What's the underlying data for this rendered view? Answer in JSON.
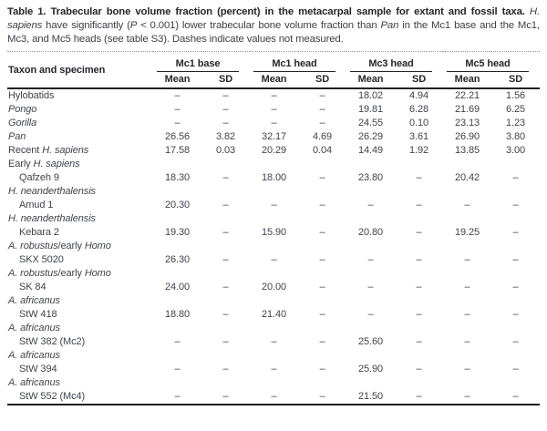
{
  "caption": {
    "segments": [
      {
        "text": "Table 1. Trabecular bone volume fraction (percent) in the metacarpal sample for extant and fossil taxa.",
        "bold": true
      },
      {
        "text": " "
      },
      {
        "text": "H. sapiens",
        "italic": true
      },
      {
        "text": " have significantly ("
      },
      {
        "text": "P",
        "italic": true
      },
      {
        "text": " < 0.001) lower trabecular bone volume fraction than "
      },
      {
        "text": "Pan",
        "italic": true
      },
      {
        "text": " in the Mc1 base and the Mc1, Mc3, and Mc5 heads (see table S3). Dashes indicate values not measured."
      }
    ]
  },
  "table": {
    "row_header": "Taxon and specimen",
    "col_groups": [
      "Mc1 base",
      "Mc1 head",
      "Mc3 head",
      "Mc5 head"
    ],
    "sub_headers": [
      "Mean",
      "SD"
    ],
    "not_measured_symbol": "–",
    "rows": [
      {
        "taxon": [
          {
            "text": "Hylobatids"
          }
        ],
        "indent": false,
        "values": [
          "–",
          "–",
          "–",
          "–",
          "18.02",
          "4.94",
          "22.21",
          "1.56"
        ]
      },
      {
        "taxon": [
          {
            "text": "Pongo",
            "italic": true
          }
        ],
        "indent": false,
        "values": [
          "–",
          "–",
          "–",
          "–",
          "19.81",
          "6.28",
          "21.69",
          "6.25"
        ]
      },
      {
        "taxon": [
          {
            "text": "Gorilla",
            "italic": true
          }
        ],
        "indent": false,
        "values": [
          "–",
          "–",
          "–",
          "–",
          "24.55",
          "0.10",
          "23.13",
          "1.23"
        ]
      },
      {
        "taxon": [
          {
            "text": "Pan",
            "italic": true
          }
        ],
        "indent": false,
        "values": [
          "26.56",
          "3.82",
          "32.17",
          "4.69",
          "26.29",
          "3.61",
          "26.90",
          "3.80"
        ]
      },
      {
        "taxon": [
          {
            "text": "Recent "
          },
          {
            "text": "H. sapiens",
            "italic": true
          }
        ],
        "indent": false,
        "values": [
          "17.58",
          "0.03",
          "20.29",
          "0.04",
          "14.49",
          "1.92",
          "13.85",
          "3.00"
        ]
      },
      {
        "taxon": [
          {
            "text": "Early "
          },
          {
            "text": "H. sapiens",
            "italic": true
          }
        ],
        "indent": false,
        "values": null
      },
      {
        "taxon": [
          {
            "text": "Qafzeh 9"
          }
        ],
        "indent": true,
        "values": [
          "18.30",
          "–",
          "18.00",
          "–",
          "23.80",
          "–",
          "20.42",
          "–"
        ]
      },
      {
        "taxon": [
          {
            "text": "H. neanderthalensis",
            "italic": true
          }
        ],
        "indent": false,
        "values": null
      },
      {
        "taxon": [
          {
            "text": "Amud 1"
          }
        ],
        "indent": true,
        "values": [
          "20.30",
          "–",
          "–",
          "–",
          "–",
          "–",
          "–",
          "–"
        ]
      },
      {
        "taxon": [
          {
            "text": "H. neanderthalensis",
            "italic": true
          }
        ],
        "indent": false,
        "values": null
      },
      {
        "taxon": [
          {
            "text": "Kebara 2"
          }
        ],
        "indent": true,
        "values": [
          "19.30",
          "–",
          "15.90",
          "–",
          "20.80",
          "–",
          "19.25",
          "–"
        ]
      },
      {
        "taxon": [
          {
            "text": "A. robustus",
            "italic": true
          },
          {
            "text": "/early "
          },
          {
            "text": "Homo",
            "italic": true
          }
        ],
        "indent": false,
        "values": null
      },
      {
        "taxon": [
          {
            "text": "SKX 5020"
          }
        ],
        "indent": true,
        "values": [
          "26.30",
          "–",
          "–",
          "–",
          "–",
          "–",
          "–",
          "–"
        ]
      },
      {
        "taxon": [
          {
            "text": "A. robustus",
            "italic": true
          },
          {
            "text": "/early "
          },
          {
            "text": "Homo",
            "italic": true
          }
        ],
        "indent": false,
        "values": null
      },
      {
        "taxon": [
          {
            "text": "SK 84"
          }
        ],
        "indent": true,
        "values": [
          "24.00",
          "–",
          "20.00",
          "–",
          "–",
          "–",
          "–",
          "–"
        ]
      },
      {
        "taxon": [
          {
            "text": "A. africanus",
            "italic": true
          }
        ],
        "indent": false,
        "values": null
      },
      {
        "taxon": [
          {
            "text": "StW 418"
          }
        ],
        "indent": true,
        "values": [
          "18.80",
          "–",
          "21.40",
          "–",
          "–",
          "–",
          "–",
          "–"
        ]
      },
      {
        "taxon": [
          {
            "text": "A. africanus",
            "italic": true
          }
        ],
        "indent": false,
        "values": null
      },
      {
        "taxon": [
          {
            "text": "StW 382 (Mc2)"
          }
        ],
        "indent": true,
        "values": [
          "–",
          "–",
          "–",
          "–",
          "25.60",
          "–",
          "–",
          "–"
        ]
      },
      {
        "taxon": [
          {
            "text": "A. africanus",
            "italic": true
          }
        ],
        "indent": false,
        "values": null
      },
      {
        "taxon": [
          {
            "text": "StW 394"
          }
        ],
        "indent": true,
        "values": [
          "–",
          "–",
          "–",
          "–",
          "25.90",
          "–",
          "–",
          "–"
        ]
      },
      {
        "taxon": [
          {
            "text": "A. africanus",
            "italic": true
          }
        ],
        "indent": false,
        "values": null
      },
      {
        "taxon": [
          {
            "text": "StW 552 (Mc4)"
          }
        ],
        "indent": true,
        "values": [
          "–",
          "–",
          "–",
          "–",
          "21.50",
          "–",
          "–",
          "–"
        ]
      }
    ]
  },
  "colors": {
    "body_text": "#41434e",
    "heading_text": "#26272c",
    "rule": "#1d1e22",
    "light_rule": "#90949d",
    "background": "#ffffff"
  }
}
